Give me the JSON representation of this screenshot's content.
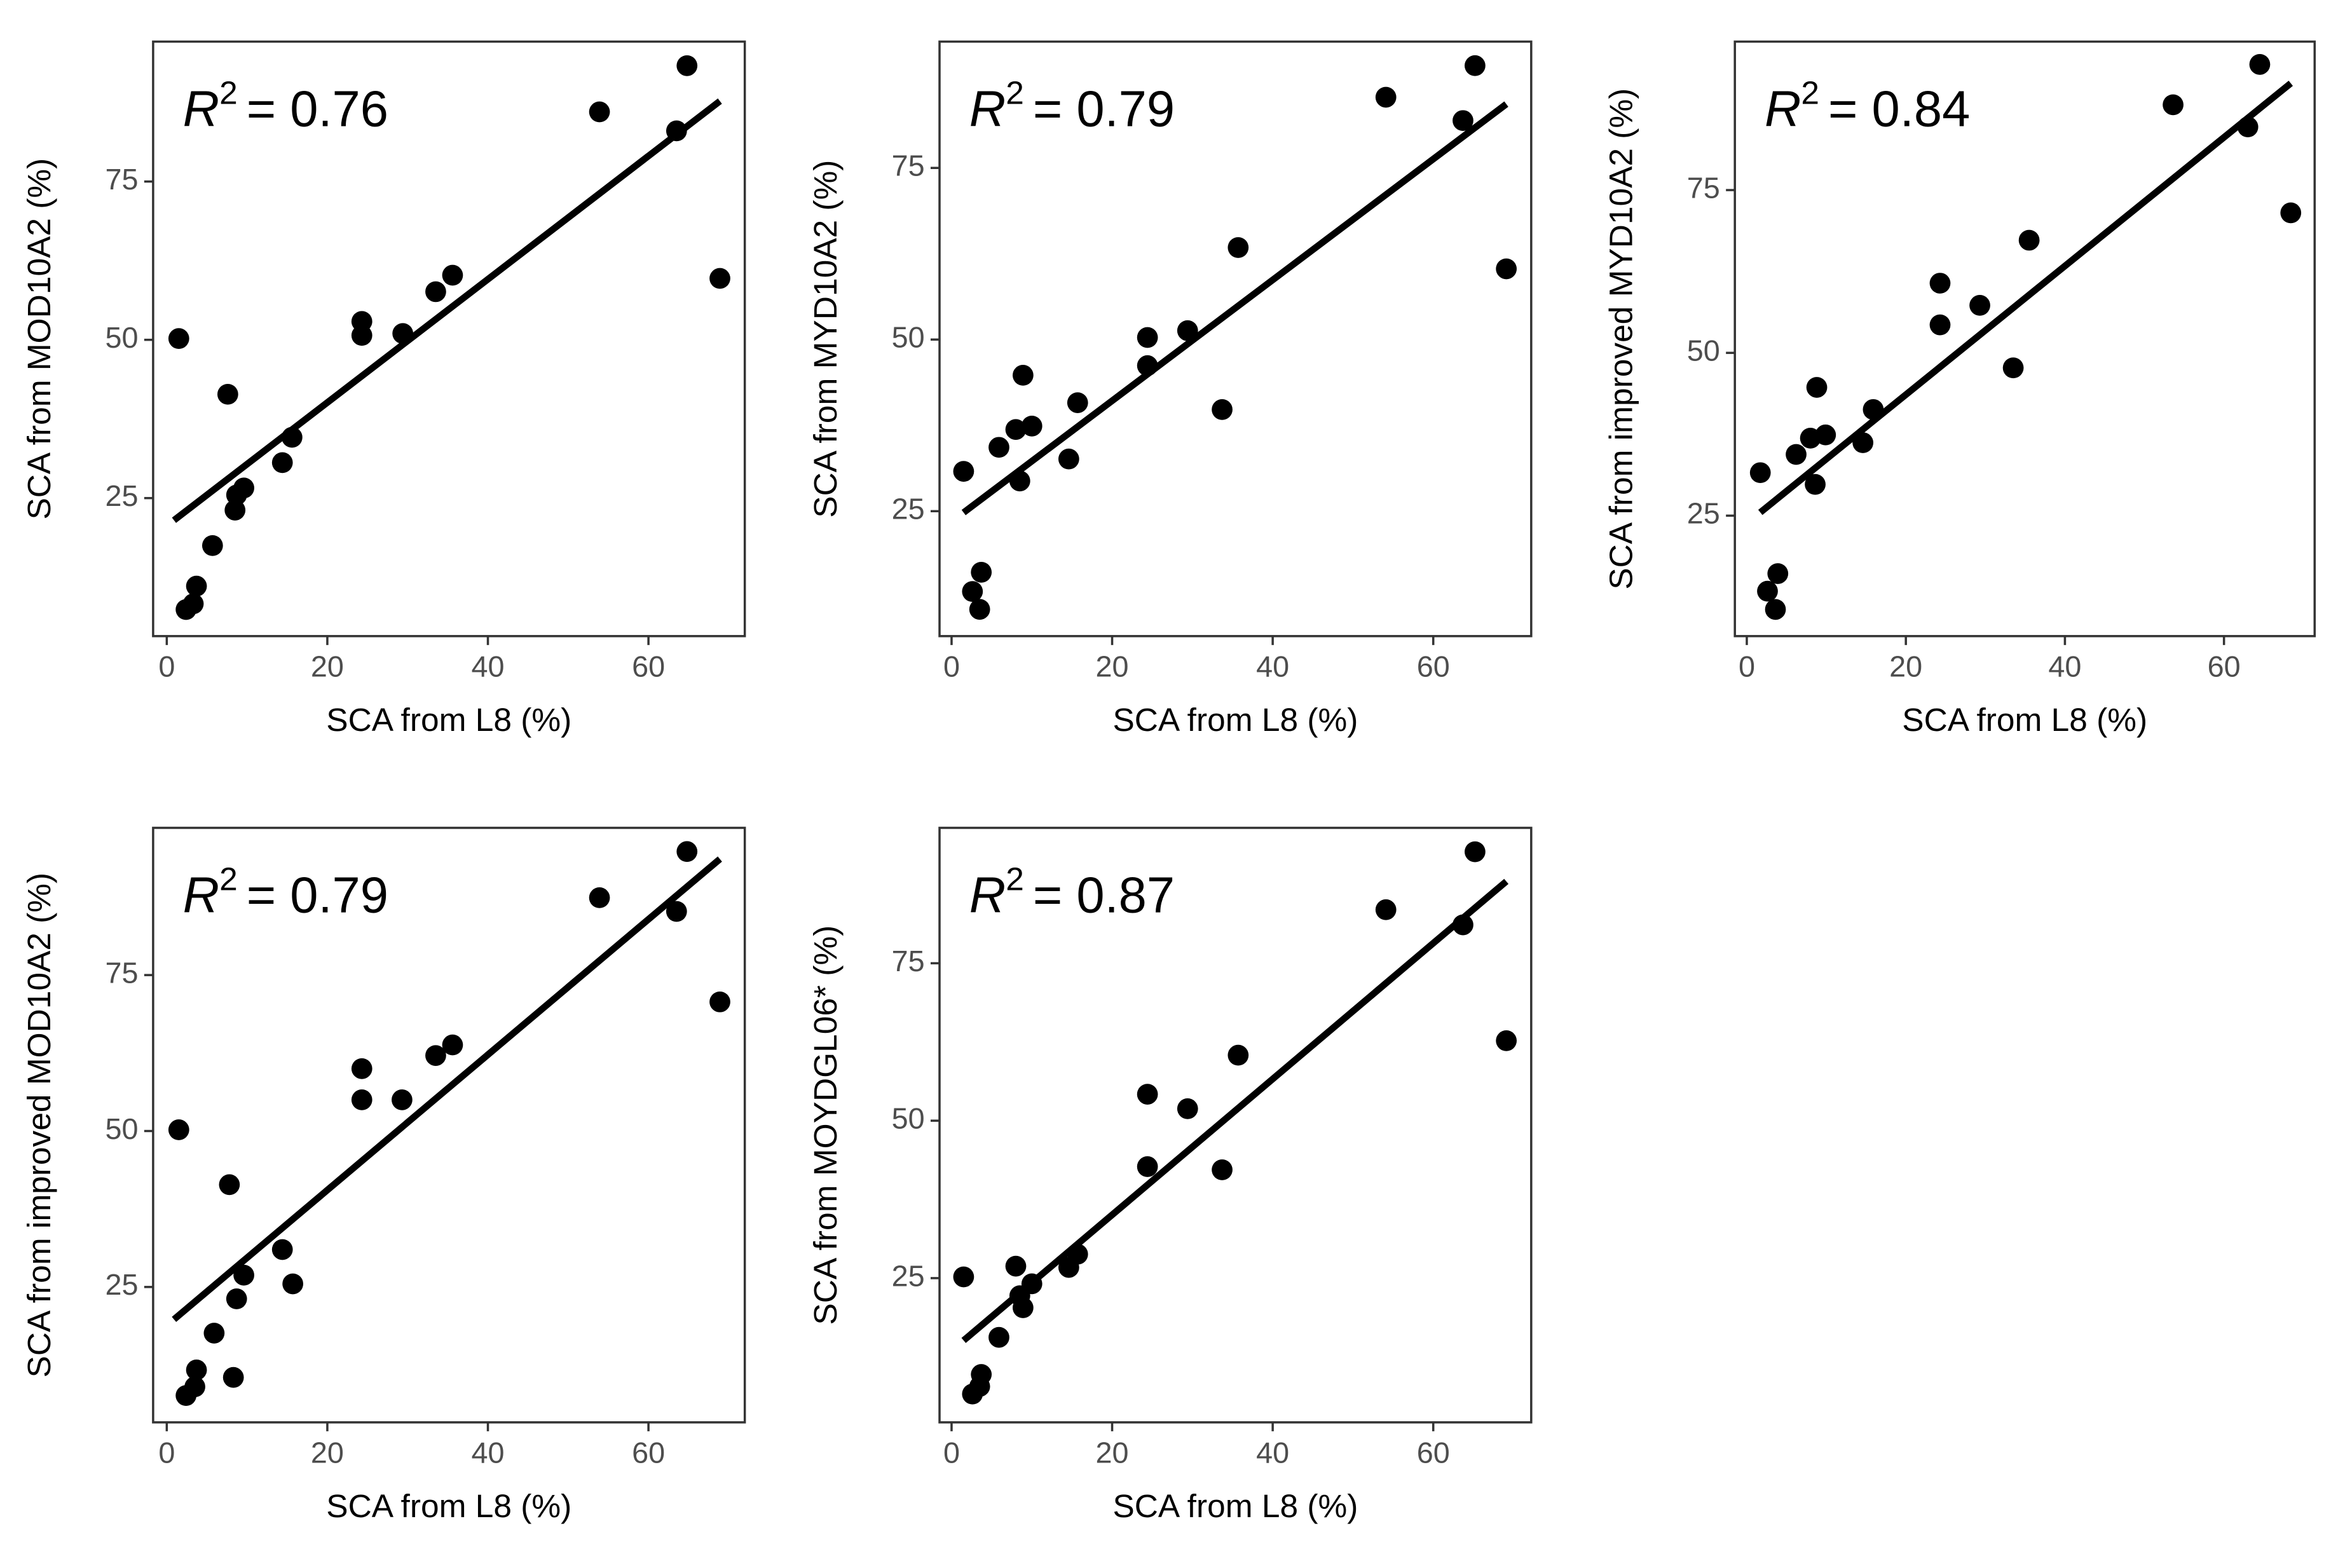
{
  "chart_data": [
    {
      "type": "scatter",
      "xlabel": "SCA from L8 (%)",
      "ylabel": "SCA from MOD10A2 (%)",
      "r_symbol": "R",
      "r_power": "2",
      "r_value": "= 0.76",
      "color": "#000000",
      "xlim": [
        -1.7,
        72
      ],
      "ylim": [
        3.2,
        97.1
      ],
      "xticks": [
        0,
        20,
        40,
        60
      ],
      "yticks": [
        25,
        50,
        75
      ],
      "x": [
        1.5,
        7.6,
        2.4,
        3.3,
        3.7,
        5.7,
        8.7,
        8.5,
        9.6,
        14.4,
        15.6,
        24.3,
        24.3,
        29.4,
        33.5,
        35.6,
        53.9,
        63.5,
        64.8,
        68.9
      ],
      "values": [
        50.2,
        41.4,
        7.4,
        8.3,
        11.1,
        17.5,
        25.5,
        23.1,
        26.6,
        30.6,
        34.6,
        52.9,
        50.7,
        51.0,
        57.6,
        60.2,
        86.0,
        83.0,
        93.3,
        59.7
      ],
      "fit": {
        "x": [
          0.9,
          68.9
        ],
        "y": [
          21.5,
          87.7
        ]
      }
    },
    {
      "type": "scatter",
      "xlabel": "SCA from L8 (%)",
      "ylabel": "SCA from MYD10A2 (%)",
      "r_symbol": "R",
      "r_power": "2",
      "r_value": "= 0.79",
      "color": "#000000",
      "xlim": [
        -1.5,
        72.2
      ],
      "ylim": [
        6.8,
        93.4
      ],
      "xticks": [
        0,
        20,
        40,
        60
      ],
      "yticks": [
        25,
        50,
        75
      ],
      "x": [
        1.5,
        2.6,
        3.5,
        3.7,
        5.9,
        8.0,
        8.5,
        8.9,
        10.0,
        14.6,
        15.7,
        24.4,
        24.4,
        29.4,
        33.7,
        35.7,
        54.1,
        63.7,
        65.2,
        69.1
      ],
      "values": [
        30.8,
        13.3,
        10.7,
        16.1,
        34.3,
        36.9,
        29.4,
        44.8,
        37.4,
        32.6,
        40.8,
        50.3,
        46.2,
        51.3,
        39.8,
        63.4,
        85.3,
        81.9,
        89.9,
        60.3
      ],
      "fit": {
        "x": [
          1.5,
          69.1
        ],
        "y": [
          24.8,
          84.3
        ]
      }
    },
    {
      "type": "scatter",
      "xlabel": "SCA from L8 (%)",
      "ylabel": "SCA from improved MYD10A2 (%)",
      "r_symbol": "R",
      "r_power": "2",
      "r_value": "= 0.84",
      "color": "#000000",
      "xlim": [
        -1.5,
        71.4
      ],
      "ylim": [
        6.5,
        97.8
      ],
      "xticks": [
        0,
        20,
        40,
        60
      ],
      "yticks": [
        25,
        50,
        75
      ],
      "x": [
        1.7,
        2.6,
        3.6,
        3.9,
        6.2,
        8.0,
        8.6,
        8.8,
        9.9,
        14.6,
        15.9,
        24.3,
        24.3,
        29.3,
        33.5,
        35.5,
        53.6,
        63.0,
        64.5,
        68.4
      ],
      "values": [
        31.6,
        13.4,
        10.6,
        16.1,
        34.4,
        36.9,
        29.8,
        44.7,
        37.4,
        36.2,
        41.3,
        60.7,
        54.3,
        57.3,
        47.7,
        67.3,
        88.1,
        84.7,
        94.3,
        71.5
      ],
      "fit": {
        "x": [
          1.7,
          68.4
        ],
        "y": [
          25.5,
          91.4
        ]
      }
    },
    {
      "type": "scatter",
      "xlabel": "SCA from L8 (%)",
      "ylabel": "SCA from improved MOD10A2 (%)",
      "r_symbol": "R",
      "r_power": "2",
      "r_value": "= 0.79",
      "color": "#000000",
      "xlim": [
        -1.7,
        72
      ],
      "ylim": [
        3.3,
        98.6
      ],
      "xticks": [
        0,
        20,
        40,
        60
      ],
      "yticks": [
        25,
        50,
        75
      ],
      "x": [
        1.5,
        7.8,
        2.4,
        3.5,
        3.7,
        5.9,
        8.3,
        8.7,
        9.6,
        14.4,
        15.7,
        24.3,
        24.3,
        29.3,
        33.5,
        35.6,
        53.9,
        63.5,
        64.8,
        68.9
      ],
      "values": [
        50.2,
        41.4,
        7.6,
        9.0,
        11.7,
        17.6,
        10.5,
        23.1,
        26.9,
        31.0,
        25.5,
        60.0,
        55.0,
        55.0,
        62.1,
        63.8,
        87.4,
        85.2,
        94.8,
        70.7
      ],
      "fit": {
        "x": [
          0.9,
          68.9
        ],
        "y": [
          19.8,
          93.6
        ]
      }
    },
    {
      "type": "scatter",
      "xlabel": "SCA from L8 (%)",
      "ylabel": "SCA from MOYDGL06* (%)",
      "r_symbol": "R",
      "r_power": "2",
      "r_value": "= 0.87",
      "color": "#000000",
      "xlim": [
        -1.5,
        72.2
      ],
      "ylim": [
        2.1,
        96.5
      ],
      "xticks": [
        0,
        20,
        40,
        60
      ],
      "yticks": [
        25,
        50,
        75
      ],
      "x": [
        1.5,
        2.6,
        3.5,
        3.7,
        5.9,
        8.0,
        8.5,
        8.9,
        10.0,
        14.6,
        15.7,
        24.4,
        24.4,
        29.4,
        33.7,
        35.7,
        54.1,
        63.7,
        65.2,
        69.1
      ],
      "values": [
        25.2,
        6.6,
        7.8,
        9.7,
        15.6,
        26.9,
        22.2,
        20.3,
        24.1,
        26.7,
        28.8,
        54.2,
        42.7,
        51.9,
        42.2,
        60.4,
        83.5,
        81.1,
        92.7,
        62.7
      ],
      "fit": {
        "x": [
          1.5,
          69.1
        ],
        "y": [
          15.1,
          88.0
        ]
      }
    }
  ]
}
